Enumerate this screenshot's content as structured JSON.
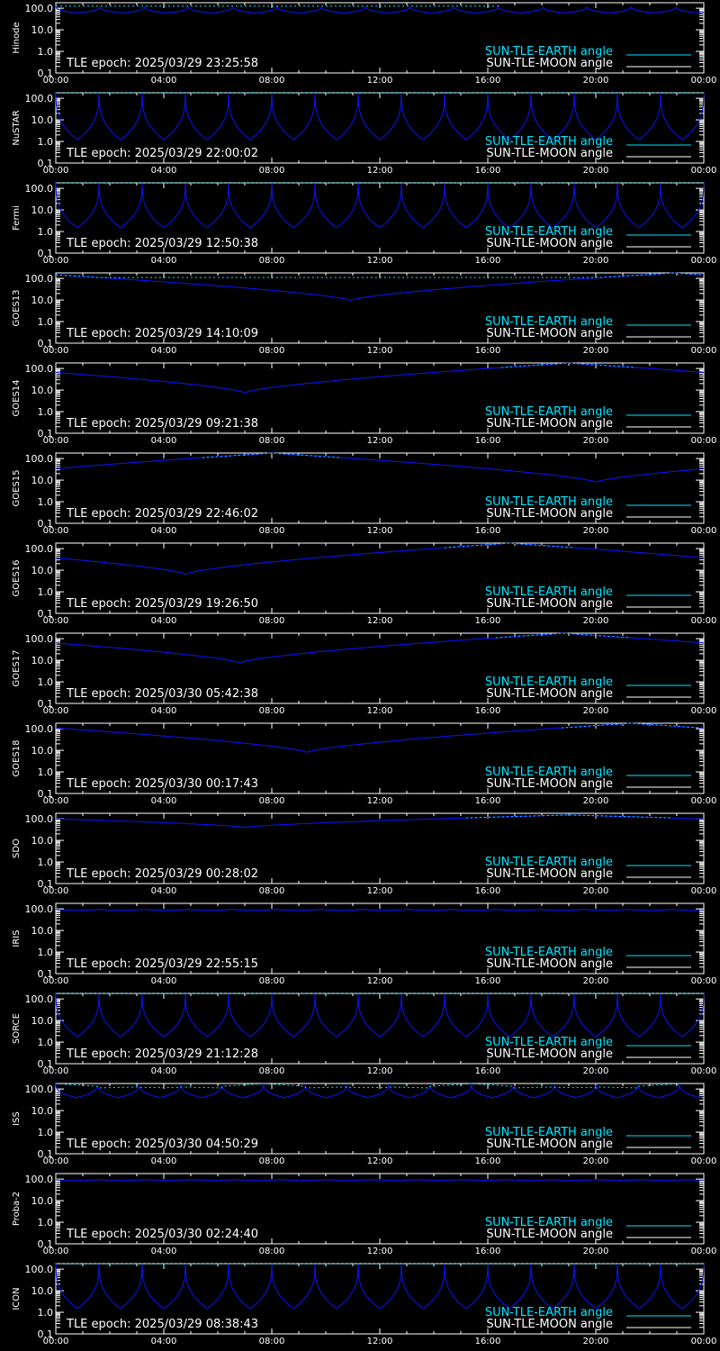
{
  "legend": {
    "earth_label": "SUN-TLE-EARTH angle",
    "moon_label": "SUN-TLE-MOON angle"
  },
  "colors": {
    "background": "#000000",
    "axes": "#ffffff",
    "earth": "#00e5ff",
    "moon": "#ffffff",
    "curve": "#0a14ff"
  },
  "axis": {
    "x_ticks": [
      "00:00",
      "04:00",
      "08:00",
      "12:00",
      "16:00",
      "20:00",
      "00:00"
    ],
    "y_ticks": [
      "100.0",
      "10.0",
      "1.0",
      "0.1"
    ],
    "y_scale": "log",
    "ylim": [
      0.1,
      180
    ]
  },
  "chart_data": [
    {
      "type": "line",
      "satellite": "Hinode",
      "tle_epoch": "TLE epoch: 2025/03/29 23:25:58",
      "series": [
        {
          "name": "SUN-TLE-EARTH angle",
          "pattern": "periodic",
          "period_h": 1.64,
          "min_deg": 60,
          "max_deg": 125
        }
      ]
    },
    {
      "type": "line",
      "satellite": "NuSTAR",
      "tle_epoch": "TLE epoch: 2025/03/29 22:00:02",
      "series": [
        {
          "name": "SUN-TLE-EARTH angle",
          "pattern": "periodic",
          "period_h": 1.6,
          "min_deg": 1.2,
          "max_deg": 178
        }
      ]
    },
    {
      "type": "line",
      "satellite": "Fermi",
      "tle_epoch": "TLE epoch: 2025/03/29 12:50:38",
      "series": [
        {
          "name": "SUN-TLE-EARTH angle",
          "pattern": "periodic",
          "period_h": 1.6,
          "min_deg": 1.5,
          "max_deg": 178
        }
      ]
    },
    {
      "type": "line",
      "satellite": "GOES13",
      "tle_epoch": "TLE epoch: 2025/03/29 14:10:09",
      "series": [
        {
          "name": "SUN-TLE-EARTH angle",
          "pattern": "single_dip",
          "dip_hour": 10.9,
          "min_deg": 9.5,
          "max_deg": 178
        }
      ]
    },
    {
      "type": "line",
      "satellite": "GOES14",
      "tle_epoch": "TLE epoch: 2025/03/29 09:21:38",
      "series": [
        {
          "name": "SUN-TLE-EARTH angle",
          "pattern": "single_dip",
          "dip_hour": 7.0,
          "min_deg": 7.5,
          "max_deg": 178
        }
      ]
    },
    {
      "type": "line",
      "satellite": "GOES15",
      "tle_epoch": "TLE epoch: 2025/03/29 22:46:02",
      "series": [
        {
          "name": "SUN-TLE-EARTH angle",
          "pattern": "single_dip",
          "dip_hour": 20.0,
          "min_deg": 8.0,
          "max_deg": 178
        }
      ]
    },
    {
      "type": "line",
      "satellite": "GOES16",
      "tle_epoch": "TLE epoch: 2025/03/29 19:26:50",
      "series": [
        {
          "name": "SUN-TLE-EARTH angle",
          "pattern": "single_dip",
          "dip_hour": 4.8,
          "min_deg": 6.5,
          "max_deg": 178
        }
      ]
    },
    {
      "type": "line",
      "satellite": "GOES17",
      "tle_epoch": "TLE epoch: 2025/03/30 05:42:38",
      "series": [
        {
          "name": "SUN-TLE-EARTH angle",
          "pattern": "single_dip",
          "dip_hour": 6.8,
          "min_deg": 7.5,
          "max_deg": 178
        }
      ]
    },
    {
      "type": "line",
      "satellite": "GOES18",
      "tle_epoch": "TLE epoch: 2025/03/30 00:17:43",
      "series": [
        {
          "name": "SUN-TLE-EARTH angle",
          "pattern": "single_dip",
          "dip_hour": 9.3,
          "min_deg": 8.0,
          "max_deg": 178
        }
      ]
    },
    {
      "type": "line",
      "satellite": "SDO",
      "tle_epoch": "TLE epoch: 2025/03/29 00:28:02",
      "series": [
        {
          "name": "SUN-TLE-EARTH angle",
          "pattern": "single_dip",
          "dip_hour": 7.0,
          "min_deg": 40,
          "max_deg": 150
        }
      ]
    },
    {
      "type": "line",
      "satellite": "IRIS",
      "tle_epoch": "TLE epoch: 2025/03/29 22:55:15",
      "series": [
        {
          "name": "SUN-TLE-EARTH angle",
          "pattern": "periodic",
          "period_h": 1.63,
          "min_deg": 85,
          "max_deg": 100
        }
      ]
    },
    {
      "type": "line",
      "satellite": "SORCE",
      "tle_epoch": "TLE epoch: 2025/03/29 21:12:28",
      "series": [
        {
          "name": "SUN-TLE-EARTH angle",
          "pattern": "periodic",
          "period_h": 1.6,
          "min_deg": 1.8,
          "max_deg": 178
        }
      ]
    },
    {
      "type": "line",
      "satellite": "ISS",
      "tle_epoch": "TLE epoch: 2025/03/30 04:50:29",
      "series": [
        {
          "name": "SUN-TLE-EARTH angle",
          "pattern": "periodic",
          "period_h": 1.54,
          "min_deg": 40,
          "max_deg": 178
        }
      ]
    },
    {
      "type": "line",
      "satellite": "Proba-2",
      "tle_epoch": "TLE epoch: 2025/03/30 02:24:40",
      "series": [
        {
          "name": "SUN-TLE-EARTH angle",
          "pattern": "periodic",
          "period_h": 1.67,
          "min_deg": 88,
          "max_deg": 95
        }
      ]
    },
    {
      "type": "line",
      "satellite": "ICON",
      "tle_epoch": "TLE epoch: 2025/03/29 08:38:43",
      "series": [
        {
          "name": "SUN-TLE-EARTH angle",
          "pattern": "periodic",
          "period_h": 1.6,
          "min_deg": 1.5,
          "max_deg": 178
        }
      ]
    }
  ]
}
